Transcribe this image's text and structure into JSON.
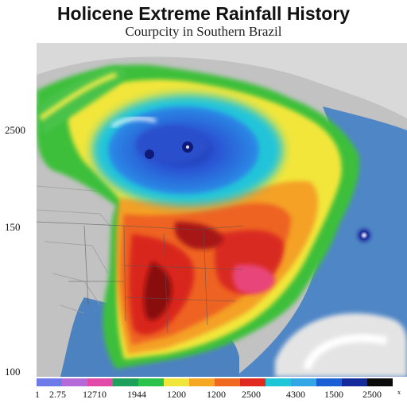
{
  "title": "Holicene Extreme Rainfall History",
  "subtitle": "Courpcity in Southern Brazil",
  "y_axis_labels": [
    "2500",
    "150",
    "100"
  ],
  "legend": {
    "colors": [
      "#6d7be8",
      "#b46ad8",
      "#e24aa8",
      "#1ca05a",
      "#2cc34a",
      "#f0e53a",
      "#f6a825",
      "#ef6a1f",
      "#e02a20",
      "#1fc6d8",
      "#33a6e6",
      "#1b5fd4",
      "#152a9a",
      "#0b0b0b"
    ],
    "labels": [
      "1",
      "2.75",
      "12710",
      "1944",
      "1200",
      "1200",
      "2500",
      "4300",
      "1500",
      "2500",
      "x"
    ]
  },
  "colors": {
    "ocean": "#4f86c6",
    "land": "#bfbfbf",
    "cloud": "#e8e8e8"
  }
}
